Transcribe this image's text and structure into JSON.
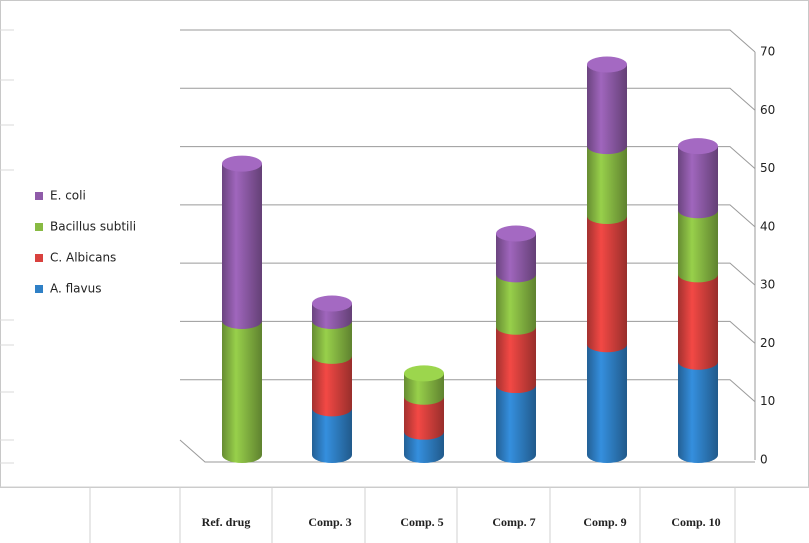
{
  "chart_data": {
    "type": "bar3d-stacked",
    "categories": [
      "Ref. drug",
      "Comp. 3",
      "Comp. 5",
      "Comp. 7",
      "Comp. 9",
      "Comp. 10"
    ],
    "series": [
      {
        "name": "A. flavus",
        "color": "#2f80c6",
        "values": [
          0,
          8,
          4,
          12,
          19,
          16
        ]
      },
      {
        "name": "C. Albicans",
        "color": "#d9413e",
        "values": [
          0,
          9,
          6,
          10,
          22,
          15
        ]
      },
      {
        "name": "Bacillus subtili",
        "color": "#88ba43",
        "values": [
          23,
          6,
          4,
          9,
          12,
          11
        ]
      },
      {
        "name": "E. coli",
        "color": "#8f5ba9",
        "values": [
          27,
          3,
          0,
          7,
          14,
          11
        ]
      }
    ],
    "ylim": [
      0,
      70
    ],
    "yticks": [
      0,
      10,
      20,
      30,
      40,
      50,
      60,
      70
    ],
    "grid": true
  }
}
